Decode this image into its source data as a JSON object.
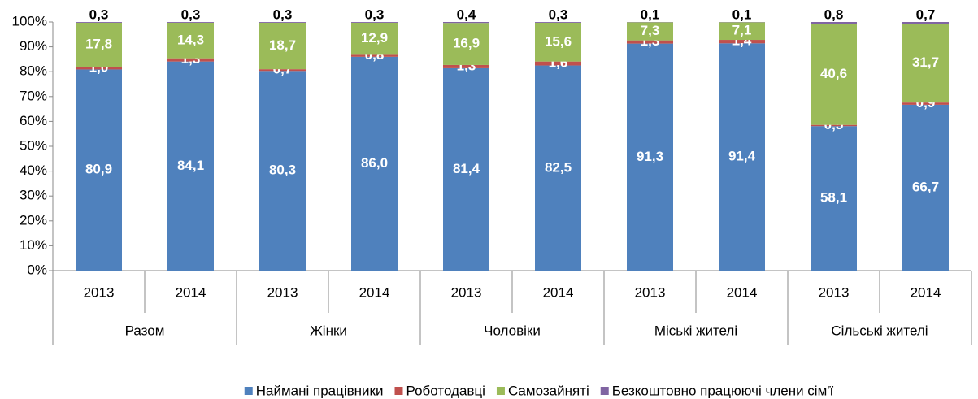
{
  "chart_data": {
    "type": "stacked_bar",
    "categories": [
      "2013",
      "2014",
      "2013",
      "2014",
      "2013",
      "2014",
      "2013",
      "2014",
      "2013",
      "2014"
    ],
    "groups": [
      "Разом",
      "Жінки",
      "Чоловіки",
      "Міські жителі",
      "Сільські жителі"
    ],
    "series": [
      {
        "name": "Наймані працівники",
        "color": "#4f81bd",
        "values": [
          80.9,
          84.1,
          80.3,
          86.0,
          81.4,
          82.5,
          91.3,
          91.4,
          58.1,
          66.7
        ],
        "value_labels": [
          "80,9",
          "84,1",
          "80,3",
          "86,0",
          "81,4",
          "82,5",
          "91,3",
          "91,4",
          "58,1",
          "66,7"
        ]
      },
      {
        "name": "Роботодавці",
        "color": "#c0504d",
        "values": [
          1.0,
          1.3,
          0.7,
          0.8,
          1.3,
          1.6,
          1.3,
          1.4,
          0.5,
          0.9
        ],
        "value_labels": [
          "1,0",
          "1,3",
          "0,7",
          "0,8",
          "1,3",
          "1,6",
          "1,3",
          "1,4",
          "0,5",
          "0,9"
        ]
      },
      {
        "name": "Самозайняті",
        "color": "#9bbb59",
        "values": [
          17.8,
          14.3,
          18.7,
          12.9,
          16.9,
          15.6,
          7.3,
          7.1,
          40.6,
          31.7
        ],
        "value_labels": [
          "17,8",
          "14,3",
          "18,7",
          "12,9",
          "16,9",
          "15,6",
          "7,3",
          "7,1",
          "40,6",
          "31,7"
        ]
      },
      {
        "name": "Безкоштовно працюючі члени сім'ї",
        "color": "#8064a2",
        "values": [
          0.3,
          0.3,
          0.3,
          0.3,
          0.4,
          0.3,
          0.1,
          0.1,
          0.8,
          0.7
        ],
        "value_labels": [
          "0,3",
          "0,3",
          "0,3",
          "0,3",
          "0,4",
          "0,3",
          "0,1",
          "0,1",
          "0,8",
          "0,7"
        ]
      }
    ],
    "ylim": [
      0,
      100
    ],
    "yticks": [
      {
        "value": 0,
        "label": "0%"
      },
      {
        "value": 10,
        "label": "10%"
      },
      {
        "value": 20,
        "label": "20%"
      },
      {
        "value": 30,
        "label": "30%"
      },
      {
        "value": 40,
        "label": "40%"
      },
      {
        "value": 50,
        "label": "50%"
      },
      {
        "value": 60,
        "label": "60%"
      },
      {
        "value": 70,
        "label": "70%"
      },
      {
        "value": 80,
        "label": "80%"
      },
      {
        "value": 90,
        "label": "90%"
      },
      {
        "value": 100,
        "label": "100%"
      }
    ],
    "legend": "bottom"
  }
}
